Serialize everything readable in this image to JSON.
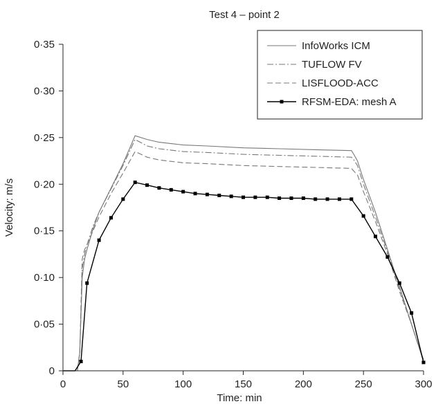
{
  "chart_data": {
    "type": "line",
    "title": "Test 4 – point 2",
    "xlabel": "Time: min",
    "ylabel": "Velocity: m/s",
    "xlim": [
      0,
      300
    ],
    "ylim": [
      0,
      0.35
    ],
    "x_ticks": [
      0,
      50,
      100,
      150,
      200,
      250,
      300
    ],
    "y_ticks": [
      0,
      0.05,
      0.1,
      0.15,
      0.2,
      0.25,
      0.3,
      0.35
    ],
    "x_tick_labels": [
      "0",
      "50",
      "100",
      "150",
      "200",
      "250",
      "300"
    ],
    "y_tick_labels": [
      "0",
      "0·05",
      "0·10",
      "0·15",
      "0·20",
      "0·25",
      "0·30",
      "0·35"
    ],
    "grid": false,
    "legend_position": "top-right",
    "series": [
      {
        "name": "InfoWorks ICM",
        "style": "solid",
        "color": "#777777",
        "x": [
          0,
          12,
          14,
          16,
          18,
          20,
          25,
          30,
          40,
          50,
          60,
          70,
          80,
          100,
          120,
          150,
          180,
          210,
          240,
          242,
          245,
          250,
          260,
          270,
          280,
          290,
          295,
          300
        ],
        "y": [
          0,
          0,
          0.02,
          0.1,
          0.12,
          0.13,
          0.152,
          0.17,
          0.196,
          0.222,
          0.252,
          0.248,
          0.245,
          0.242,
          0.241,
          0.239,
          0.238,
          0.237,
          0.236,
          0.232,
          0.225,
          0.205,
          0.17,
          0.13,
          0.09,
          0.05,
          0.03,
          0.012
        ]
      },
      {
        "name": "TUFLOW FV",
        "style": "dashdot",
        "color": "#777777",
        "x": [
          0,
          12,
          14,
          16,
          18,
          20,
          25,
          30,
          40,
          50,
          60,
          70,
          80,
          100,
          120,
          150,
          180,
          210,
          240,
          242,
          245,
          250,
          260,
          270,
          280,
          290,
          295,
          300
        ],
        "y": [
          0,
          0,
          0.02,
          0.11,
          0.125,
          0.135,
          0.155,
          0.17,
          0.195,
          0.22,
          0.248,
          0.241,
          0.238,
          0.235,
          0.234,
          0.232,
          0.231,
          0.23,
          0.229,
          0.226,
          0.22,
          0.2,
          0.165,
          0.128,
          0.088,
          0.05,
          0.03,
          0.01
        ]
      },
      {
        "name": "LISFLOOD-ACC",
        "style": "dashed",
        "color": "#777777",
        "x": [
          0,
          12,
          14,
          16,
          18,
          20,
          25,
          30,
          40,
          50,
          60,
          70,
          80,
          100,
          120,
          150,
          180,
          210,
          240,
          242,
          245,
          250,
          260,
          270,
          280,
          290,
          295,
          300
        ],
        "y": [
          0,
          0,
          0.02,
          0.12,
          0.13,
          0.135,
          0.15,
          0.165,
          0.19,
          0.212,
          0.235,
          0.229,
          0.226,
          0.223,
          0.222,
          0.22,
          0.219,
          0.218,
          0.217,
          0.214,
          0.21,
          0.192,
          0.16,
          0.125,
          0.085,
          0.05,
          0.03,
          0.01
        ]
      },
      {
        "name": "RFSM-EDA: mesh A",
        "style": "solid-square",
        "color": "#000000",
        "x": [
          0,
          10,
          15,
          20,
          30,
          40,
          50,
          60,
          70,
          80,
          90,
          100,
          110,
          120,
          130,
          140,
          150,
          160,
          170,
          180,
          190,
          200,
          210,
          220,
          230,
          240,
          250,
          260,
          270,
          280,
          290,
          300
        ],
        "y": [
          0,
          0,
          0.01,
          0.094,
          0.14,
          0.164,
          0.184,
          0.202,
          0.199,
          0.196,
          0.194,
          0.192,
          0.19,
          0.189,
          0.188,
          0.187,
          0.186,
          0.186,
          0.186,
          0.185,
          0.185,
          0.185,
          0.184,
          0.184,
          0.184,
          0.184,
          0.166,
          0.144,
          0.122,
          0.094,
          0.062,
          0.009
        ]
      }
    ]
  }
}
